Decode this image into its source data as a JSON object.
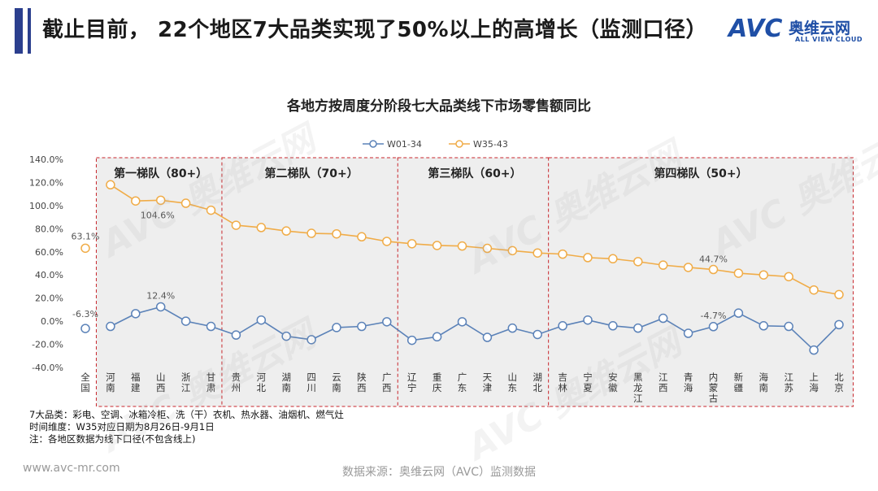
{
  "page": {
    "title": "截止目前， 22个地区7大品类实现了50%以上的高增长（监测口径）",
    "logo_mark": "AVC",
    "logo_cn": "奥维云网",
    "logo_en": "ALL VIEW CLOUD",
    "notes": [
      "7大品类：彩电、空调、冰箱冷柜、洗（干）衣机、热水器、油烟机、燃气灶",
      "时间维度：W35对应日期为8月26日-9月1日",
      "注：各地区数据为线下口径(不包含线上)"
    ],
    "footer_url": "www.avc-mr.com",
    "footer_source": "数据来源：奥维云网（AVC）监测数据",
    "watermark": "AVC 奥维云网"
  },
  "colors": {
    "w01": "#5b82b8",
    "w35": "#f0ac48",
    "group_border": "#c8262c",
    "group_bg": "#eeeeee",
    "title_accent": "#2b3f8e"
  },
  "chart_data": {
    "type": "line",
    "title": "各地方按周度分阶段七大品类线下市场零售额同比",
    "categories": [
      "全国",
      "河南",
      "福建",
      "山西",
      "浙江",
      "甘肃",
      "贵州",
      "河北",
      "湖南",
      "四川",
      "云南",
      "陕西",
      "广西",
      "辽宁",
      "重庆",
      "广东",
      "天津",
      "山东",
      "湖北",
      "吉林",
      "宁夏",
      "安徽",
      "黑龙江",
      "江西",
      "青海",
      "内蒙古",
      "新疆",
      "海南",
      "江苏",
      "上海",
      "北京"
    ],
    "series": [
      {
        "name": "W01-34",
        "values": [
          -6.3,
          -4.5,
          6.5,
          12.4,
          0.0,
          -4.5,
          -12.0,
          1.0,
          -13.0,
          -16.0,
          -5.5,
          -4.5,
          -0.5,
          -16.5,
          -13.5,
          -0.5,
          -14.0,
          -6.0,
          -11.5,
          -4.0,
          1.0,
          -4.0,
          -6.0,
          2.5,
          -10.5,
          -4.7,
          7.0,
          -4.0,
          -4.5,
          -25.0,
          -3.0
        ]
      },
      {
        "name": "W35-43",
        "values": [
          63.1,
          118.0,
          104.0,
          104.6,
          102.0,
          96.0,
          83.0,
          81.0,
          78.0,
          76.0,
          75.5,
          73.0,
          69.0,
          67.0,
          65.5,
          65.0,
          63.0,
          61.0,
          59.0,
          58.0,
          55.0,
          54.0,
          51.5,
          48.5,
          46.5,
          44.7,
          41.5,
          40.0,
          38.5,
          27.0,
          23.0
        ]
      }
    ],
    "ylim": [
      -40,
      140
    ],
    "yticks": [
      "-40.0%",
      "-20.0%",
      "0.0%",
      "20.0%",
      "40.0%",
      "60.0%",
      "80.0%",
      "100.0%",
      "120.0%",
      "140.0%"
    ],
    "labels": [
      {
        "series": "W35-43",
        "index": 0,
        "text": "63.1%"
      },
      {
        "series": "W35-43",
        "index": 3,
        "text": "104.6%"
      },
      {
        "series": "W35-43",
        "index": 25,
        "text": "44.7%"
      },
      {
        "series": "W01-34",
        "index": 0,
        "text": "-6.3%"
      },
      {
        "series": "W01-34",
        "index": 3,
        "text": "12.4%"
      },
      {
        "series": "W01-34",
        "index": 25,
        "text": "-4.7%"
      }
    ],
    "groups": [
      {
        "label": "第一梯队（80+）",
        "start": 1,
        "end": 5
      },
      {
        "label": "第二梯队（70+）",
        "start": 6,
        "end": 12
      },
      {
        "label": "第三梯队（60+）",
        "start": 13,
        "end": 18
      },
      {
        "label": "第四梯队（50+）",
        "start": 19,
        "end": 30
      }
    ],
    "legend_position": "top-center",
    "grid": false
  }
}
